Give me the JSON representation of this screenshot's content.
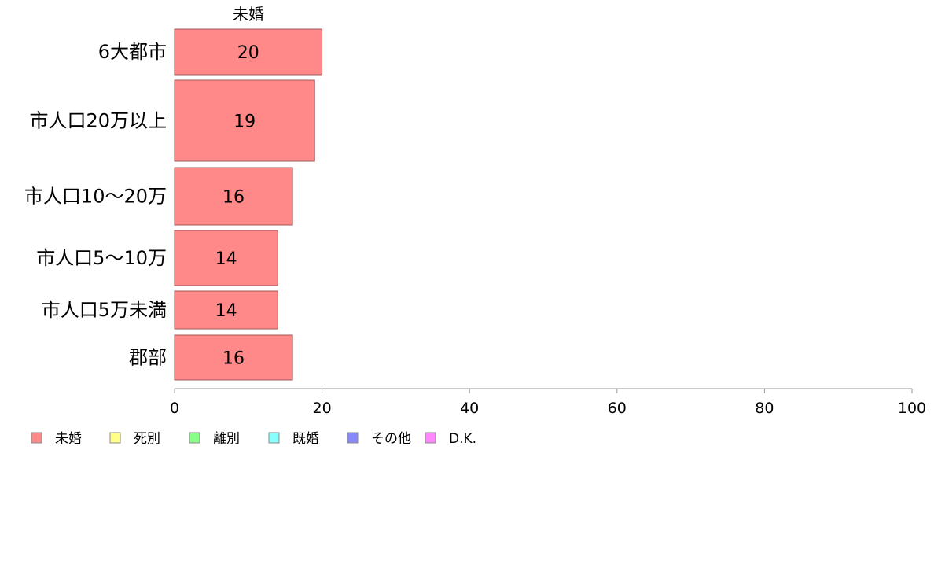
{
  "chart_data": {
    "type": "bar",
    "orientation": "horizontal",
    "column_title": "未婚",
    "categories": [
      "6大都市",
      "市人口20万以上",
      "市人口10〜20万",
      "市人口5〜10万",
      "市人口5万未満",
      "郡部"
    ],
    "series": [
      {
        "name": "未婚",
        "values": [
          20,
          19,
          16,
          14,
          14,
          16
        ]
      }
    ],
    "xlim": [
      0,
      100
    ],
    "x_ticks": [
      0,
      20,
      40,
      60,
      80,
      100
    ],
    "legend": {
      "placement": "bottom-left",
      "entries": [
        {
          "label": "未婚",
          "color": "#ff8888"
        },
        {
          "label": "死別",
          "color": "#ffff88"
        },
        {
          "label": "離別",
          "color": "#88ff88"
        },
        {
          "label": "既婚",
          "color": "#88ffff"
        },
        {
          "label": "その他",
          "color": "#8888ff"
        },
        {
          "label": "D.K.",
          "color": "#ff88ff"
        }
      ]
    },
    "grid": false
  }
}
